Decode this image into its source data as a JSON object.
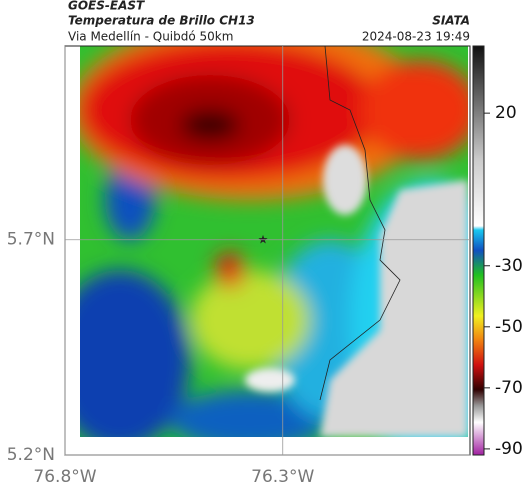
{
  "map": {
    "title": "GOES-EAST",
    "subtitle": "Temperatura de Brillo CH13",
    "region": "Via Medellín - Quibdó 50km",
    "source": "SIATA",
    "timestamp": "2024-08-23 19:49",
    "xlim": [
      -76.8,
      -75.87
    ],
    "ylim": [
      5.2,
      6.15
    ],
    "xticks": [
      {
        "value": -76.8,
        "label": "76.8°W"
      },
      {
        "value": -76.3,
        "label": "76.3°W"
      }
    ],
    "yticks": [
      {
        "value": 5.7,
        "label": "5.7°N"
      },
      {
        "value": 5.2,
        "label": "5.2°N"
      }
    ],
    "grid": true,
    "colorbar": {
      "lim": [
        -92,
        42
      ],
      "ticks": [
        20,
        -30,
        -50,
        -70,
        -90
      ]
    }
  }
}
